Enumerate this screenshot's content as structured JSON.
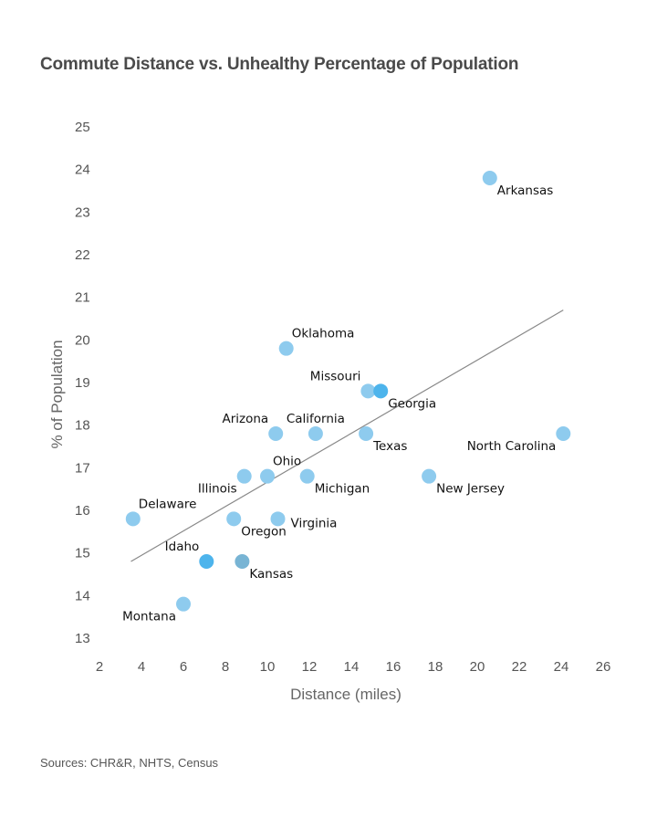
{
  "title": "Commute Distance vs. Unhealthy Percentage of Population",
  "source": "Sources: CHR&R, NHTS, Census",
  "colors": {
    "point": "#8ecbee",
    "point_highlight": "#4db4ec",
    "point_kansas": "#78b4d4",
    "trend": "#888888",
    "text": "#555555"
  },
  "chart_data": {
    "type": "scatter",
    "title": "Commute Distance vs. Unhealthy Percentage of Population",
    "xlabel": "Distance (miles)",
    "ylabel": "% of Population",
    "xlim": [
      2,
      26
    ],
    "ylim": [
      13,
      25
    ],
    "xticks": [
      2,
      4,
      6,
      8,
      10,
      12,
      14,
      16,
      18,
      20,
      22,
      24,
      26
    ],
    "yticks": [
      13,
      14,
      15,
      16,
      17,
      18,
      19,
      20,
      21,
      22,
      23,
      24,
      25
    ],
    "grid": false,
    "trendline": {
      "x": [
        3.5,
        24.1
      ],
      "y": [
        14.8,
        20.7
      ]
    },
    "points": [
      {
        "label": "Arkansas",
        "x": 20.6,
        "y": 23.8,
        "label_pos": "below-right"
      },
      {
        "label": "Oklahoma",
        "x": 10.9,
        "y": 19.8,
        "label_pos": "above-right"
      },
      {
        "label": "Missouri",
        "x": 14.8,
        "y": 18.8,
        "label_pos": "above-left"
      },
      {
        "label": "Georgia",
        "x": 15.4,
        "y": 18.8,
        "label_pos": "below-right",
        "highlight": true
      },
      {
        "label": "Arizona",
        "x": 10.4,
        "y": 17.8,
        "label_pos": "above-left"
      },
      {
        "label": "California",
        "x": 12.3,
        "y": 17.8,
        "label_pos": "above"
      },
      {
        "label": "Texas",
        "x": 14.7,
        "y": 17.8,
        "label_pos": "below-right"
      },
      {
        "label": "North Carolina",
        "x": 24.1,
        "y": 17.8,
        "label_pos": "below-left"
      },
      {
        "label": "Ohio",
        "x": 10.0,
        "y": 16.8,
        "label_pos": "above-right"
      },
      {
        "label": "Illinois",
        "x": 8.9,
        "y": 16.8,
        "label_pos": "below-left"
      },
      {
        "label": "Michigan",
        "x": 11.9,
        "y": 16.8,
        "label_pos": "below-right"
      },
      {
        "label": "New Jersey",
        "x": 17.7,
        "y": 16.8,
        "label_pos": "below-right"
      },
      {
        "label": "Delaware",
        "x": 3.6,
        "y": 15.8,
        "label_pos": "above-right"
      },
      {
        "label": "Oregon",
        "x": 8.4,
        "y": 15.8,
        "label_pos": "below-right"
      },
      {
        "label": "Virginia",
        "x": 10.5,
        "y": 15.8,
        "label_pos": "right"
      },
      {
        "label": "Idaho",
        "x": 7.1,
        "y": 14.8,
        "label_pos": "above-left",
        "highlight": true
      },
      {
        "label": "Kansas",
        "x": 8.8,
        "y": 14.8,
        "label_pos": "below-right",
        "variant": "kansas"
      },
      {
        "label": "Montana",
        "x": 6.0,
        "y": 13.8,
        "label_pos": "below-left"
      }
    ]
  }
}
